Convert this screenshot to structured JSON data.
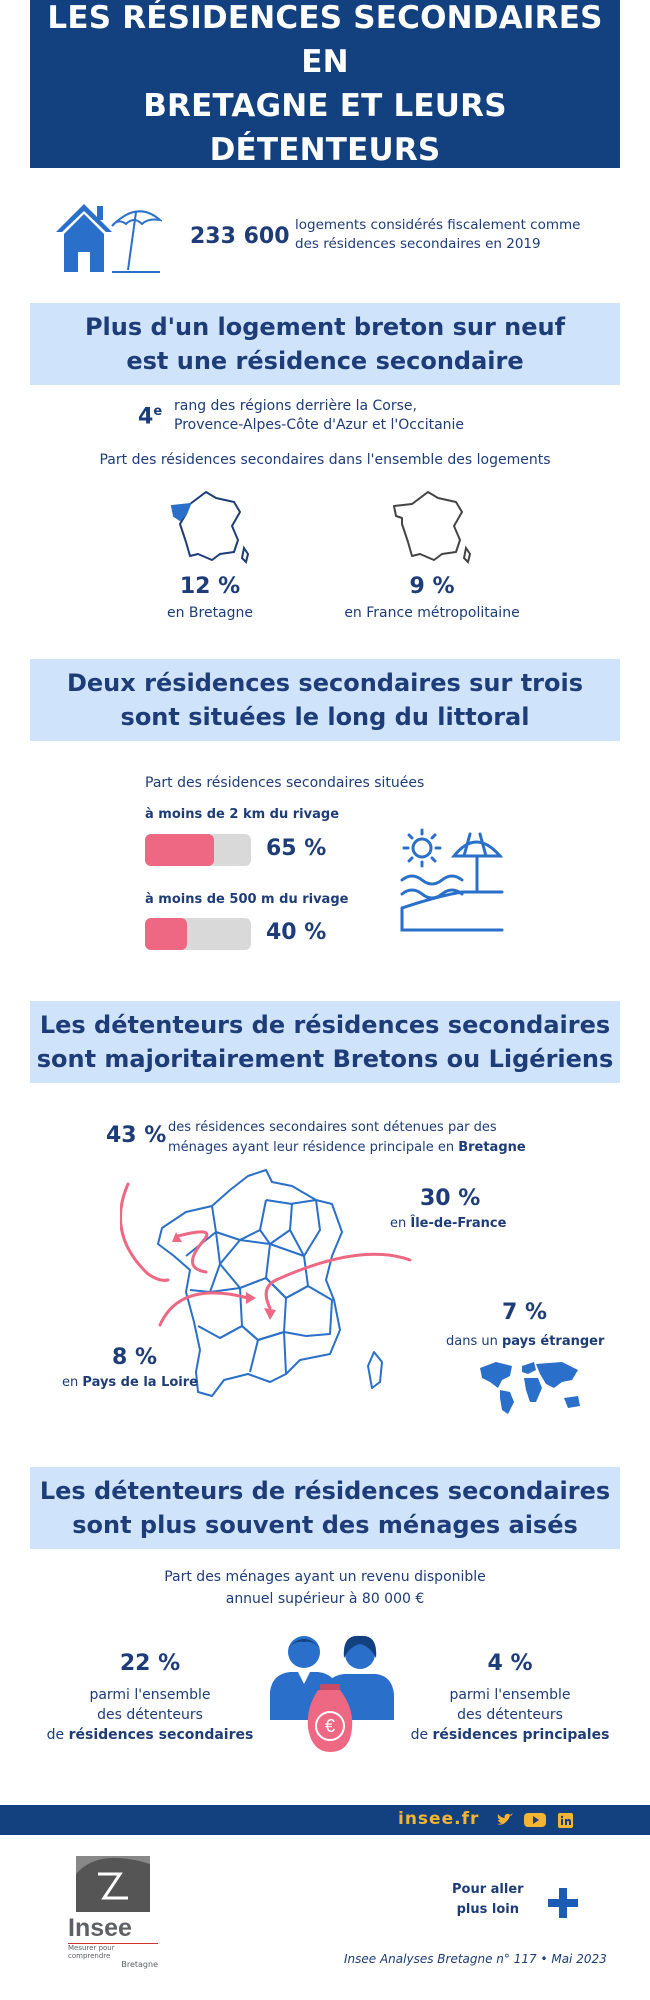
{
  "header": {
    "title_line1": "LES RÉSIDENCES SECONDAIRES EN",
    "title_line2": "BRETAGNE ET LEURS DÉTENTEURS"
  },
  "intro": {
    "count": "233 600",
    "desc_line1": "logements considérés fiscalement comme",
    "desc_line2": "des résidences secondaires en 2019",
    "icon": "house-beach-umbrella-icon"
  },
  "section1": {
    "title_line1": "Plus d'un logement breton sur neuf",
    "title_line2": "est une résidence secondaire",
    "rank_num": "4",
    "rank_sup": "e",
    "rank_line1": "rang des régions derrière la Corse,",
    "rank_line2": "Provence-Alpes-Côte d'Azur et l'Occitanie",
    "subtitle": "Part des résidences secondaires dans l'ensemble des logements",
    "left_value": "12 %",
    "left_label": "en Bretagne",
    "right_value": "9 %",
    "right_label": "en France métropolitaine"
  },
  "section2": {
    "title_line1": "Deux résidences secondaires sur trois",
    "title_line2": "sont situées le long du littoral",
    "subtitle": "Part des résidences secondaires situées",
    "bars": [
      {
        "label": "à moins de 2 km du rivage",
        "value": "65 %",
        "fraction": 0.65
      },
      {
        "label": "à moins de 500 m du rivage",
        "value": "40 %",
        "fraction": 0.4
      }
    ],
    "icon": "beach-sun-icon"
  },
  "section3": {
    "title_line1": "Les détenteurs de résidences secondaires",
    "title_line2": "sont majoritairement Bretons ou Ligériens",
    "bretagne_value": "43 %",
    "bretagne_text1": "des résidences secondaires sont détenues par des",
    "bretagne_text2": "ménages ayant leur résidence principale en",
    "bretagne_bold": "Bretagne",
    "idf_value": "30 %",
    "idf_pre": "en",
    "idf_bold": "Île-de-France",
    "pdl_value": "8 %",
    "pdl_pre": "en",
    "pdl_bold": "Pays de la Loire",
    "abroad_value": "7 %",
    "abroad_pre": "dans un",
    "abroad_bold": "pays étranger"
  },
  "section4": {
    "title_line1": "Les détenteurs de résidences secondaires",
    "title_line2": "sont plus souvent des ménages aisés",
    "subtitle_line1": "Part des ménages ayant un revenu disponible",
    "subtitle_line2": "annuel supérieur à 80 000 €",
    "left_value": "22 %",
    "left_l1": "parmi l'ensemble",
    "left_l2": "des détenteurs",
    "left_l3_pre": "de",
    "left_l3_bold": "résidences secondaires",
    "right_value": "4 %",
    "right_l1": "parmi l'ensemble",
    "right_l2": "des détenteurs",
    "right_l3_pre": "de",
    "right_l3_bold": "résidences principales",
    "money_symbol": "€"
  },
  "footer": {
    "site": "insee.fr",
    "logo_name": "Insee",
    "logo_tagline": "Mesurer pour comprendre",
    "logo_region": "Bretagne",
    "more_line1": "Pour aller",
    "more_line2": "plus loin",
    "reference": "Insee Analyses Bretagne n° 117 • Mai 2023"
  },
  "colors": {
    "navy": "#13407e",
    "text": "#1d3c78",
    "light": "#cfe3fa",
    "pink": "#ee6883",
    "blue": "#2a6fc9"
  }
}
